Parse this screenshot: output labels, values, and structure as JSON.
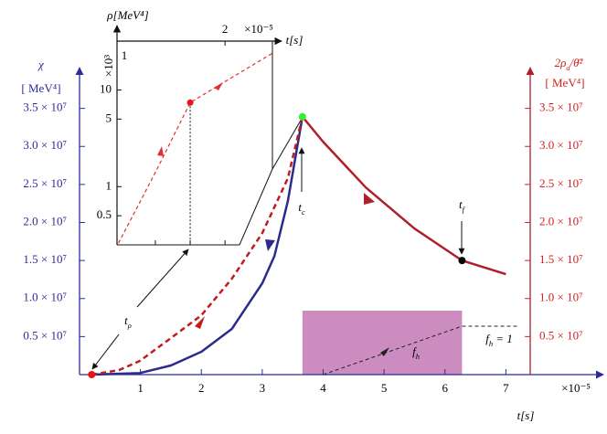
{
  "chart_data": {
    "type": "line",
    "x_label": "t[s]",
    "x_multiplier": "×10⁻⁵",
    "y_label": "χ",
    "y_unit": "[ MeV⁴]",
    "y2_label": {
      "text": "2ρ",
      "sub": "a",
      "after": "/θ̄²"
    },
    "y2_unit": "[ MeV⁴]",
    "xlim": [
      0,
      8.6
    ],
    "xticks": [
      1,
      2,
      3,
      4,
      5,
      6,
      7
    ],
    "ylim": [
      0,
      40000000
    ],
    "yticks": [
      {
        "value": 5000000,
        "label": "0.5 × 10⁷"
      },
      {
        "value": 10000000,
        "label": "1.0 × 10⁷"
      },
      {
        "value": 15000000,
        "label": "1.5 × 10⁷"
      },
      {
        "value": 20000000,
        "label": "2.0 × 10⁷"
      },
      {
        "value": 25000000,
        "label": "2.5 × 10⁷"
      },
      {
        "value": 30000000,
        "label": "3.0 × 10⁷"
      },
      {
        "value": 35000000,
        "label": "3.5 × 10⁷"
      }
    ],
    "y2lim": [
      0,
      40000000
    ],
    "y2ticks": [
      {
        "value": 5000000,
        "label": "0.5 × 10⁷"
      },
      {
        "value": 10000000,
        "label": "1.0 × 10⁷"
      },
      {
        "value": 15000000,
        "label": "1.5 × 10⁷"
      },
      {
        "value": 20000000,
        "label": "2.0 × 10⁷"
      },
      {
        "value": 25000000,
        "label": "2.5 × 10⁷"
      },
      {
        "value": 30000000,
        "label": "3.0 × 10⁷"
      },
      {
        "value": 35000000,
        "label": "3.5 × 10⁷"
      }
    ],
    "axis_colors": {
      "y": "#2b2b9a",
      "y2": "#d42020"
    },
    "series": [
      {
        "color": "#2b2b8c",
        "dash": false,
        "axis": "y",
        "x": [
          0.2,
          0.99,
          1.5,
          2.0,
          2.5,
          3.0,
          3.2,
          3.42,
          3.66
        ],
        "values": [
          0,
          200000,
          1200000,
          3000000,
          6000000,
          12000000,
          15600000,
          22800000,
          33900000
        ]
      },
      {
        "color": "#c01c1c",
        "dash": true,
        "axis": "y2",
        "x": [
          0.2,
          0.65,
          0.99,
          1.5,
          2.0,
          2.5,
          3.0,
          3.42,
          3.66
        ],
        "values": [
          0,
          600000,
          1800000,
          4800000,
          7800000,
          12600000,
          18600000,
          25800000,
          33900000
        ]
      },
      {
        "color": "#b0202a",
        "dash": false,
        "axis": "y2",
        "x": [
          3.66,
          4.0,
          4.7,
          5.5,
          6.28,
          7.0
        ],
        "values": [
          33900000,
          30600000,
          24600000,
          19200000,
          15000000,
          13200000
        ]
      }
    ],
    "points": [
      {
        "x": 0.2,
        "value": 0,
        "color": "#e8141c"
      },
      {
        "x": 3.66,
        "value": 33900000,
        "color": "#33ee33"
      },
      {
        "x": 6.28,
        "value": 15000000,
        "color": "#000000"
      }
    ],
    "region": {
      "x": [
        3.66,
        6.28
      ],
      "color": "#cc8cbf",
      "flim": [
        0,
        1.32
      ],
      "line": {
        "x": [
          4.0,
          6.28,
          7.18
        ],
        "values": [
          0,
          1,
          1
        ],
        "color": "#222222"
      }
    },
    "annotations": {
      "t_rho": {
        "text": "t",
        "sub": "ρ"
      },
      "t_c": {
        "text": "t",
        "sub": "c"
      },
      "t_f": {
        "text": "t",
        "sub": "f"
      },
      "f_h": {
        "text": "f",
        "sub": "h"
      },
      "f_h_one": {
        "text": "f",
        "sub": "h",
        "after": " = 1"
      }
    },
    "inset": {
      "type": "line",
      "y_label": "ρ[MeV⁴]",
      "x_label": "t[s]",
      "x_multiplier": "×10⁻⁵",
      "y_multiplier": "×10³",
      "corner_label": "1",
      "log_y": true,
      "xlim": [
        0.45,
        2.68
      ],
      "xticks": [
        2
      ],
      "bottom_ticks": [
        1,
        1.5,
        2
      ],
      "ylim": [
        0.25,
        32
      ],
      "yticks": [
        0.5,
        1,
        5,
        10
      ],
      "series": [
        {
          "color": "#e03030",
          "dash": true,
          "x": [
            0.47,
            1.0,
            1.5,
            2.0,
            2.68
          ],
          "values": [
            0.26,
            1.4,
            7.4,
            12.2,
            24
          ]
        }
      ],
      "point": {
        "x": 1.5,
        "value": 7.4,
        "color": "#e8141c"
      }
    }
  }
}
